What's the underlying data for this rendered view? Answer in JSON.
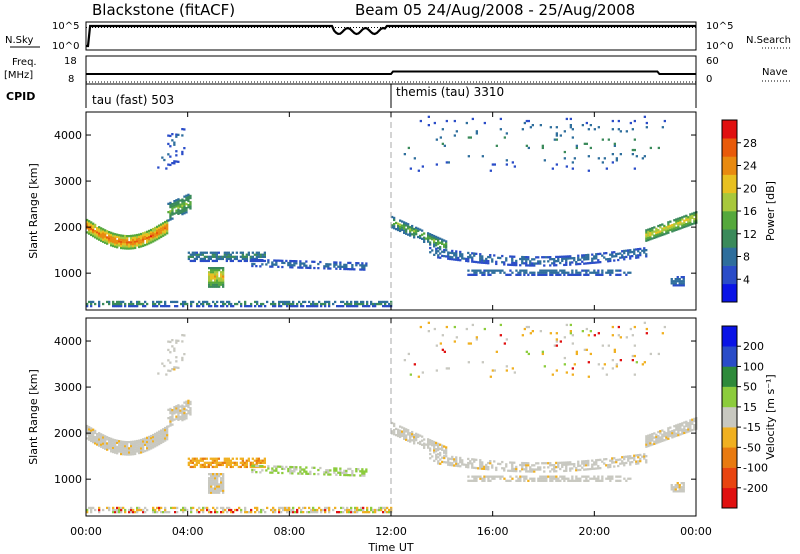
{
  "header": {
    "station": "Blackstone (fitACF)",
    "beam_date": "Beam 05  24/Aug/2008 - 25/Aug/2008"
  },
  "panels": {
    "nsky_label": "N.Sky",
    "nsearch_label": "N.Search",
    "freq_label": "Freq.",
    "freq_unit": "[MHz]",
    "nave_label": "Nave",
    "cpid_label": "CPID",
    "left_scale_nsky": [
      "10^5",
      "10^0"
    ],
    "right_scale_nsky": [
      "10^5",
      "10^0"
    ],
    "left_scale_freq": [
      "18",
      "8"
    ],
    "right_scale_nave": [
      "60",
      "0"
    ],
    "cpid_segments": [
      "tau (fast) 503",
      "themis (tau) 3310"
    ]
  },
  "colors": {
    "power": [
      "#0a14e6",
      "#2a4cc8",
      "#2e6e9c",
      "#3a8a5a",
      "#55a83c",
      "#a8c83c",
      "#e8c020",
      "#e88a10",
      "#e85a0a",
      "#e01010"
    ],
    "velocity": [
      "#0a14e6",
      "#2a4cc8",
      "#2e8a3a",
      "#8ccc3c",
      "#c8c8c0",
      "#f0b020",
      "#e87a10",
      "#e84410",
      "#e01010"
    ]
  },
  "chart_data": [
    {
      "type": "heatmap",
      "name": "power",
      "ylabel": "Slant Range [km]",
      "yticks": [
        "1000",
        "2000",
        "3000",
        "4000"
      ],
      "ylim": [
        200,
        4500
      ],
      "xlim": [
        0,
        24
      ],
      "xticks": [
        "00:00",
        "04:00",
        "08:00",
        "12:00",
        "16:00",
        "20:00",
        "00:00"
      ],
      "colorbar_label": "Power [dB]",
      "colorbar_ticks": [
        "4",
        "8",
        "12",
        "16",
        "20",
        "24",
        "28"
      ],
      "range": [
        0,
        30
      ]
    },
    {
      "type": "heatmap",
      "name": "velocity",
      "ylabel": "Slant Range [km]",
      "yticks": [
        "1000",
        "2000",
        "3000",
        "4000"
      ],
      "ylim": [
        200,
        4500
      ],
      "xlim": [
        0,
        24
      ],
      "xticks": [
        "00:00",
        "04:00",
        "08:00",
        "12:00",
        "16:00",
        "20:00",
        "00:00"
      ],
      "xlabel": "Time UT",
      "colorbar_label": "Velocity [m s⁻¹]",
      "colorbar_ticks": [
        "200",
        "100",
        "50",
        "15",
        "-15",
        "-50",
        "-100",
        "-200"
      ],
      "range": [
        -250,
        250
      ]
    }
  ]
}
